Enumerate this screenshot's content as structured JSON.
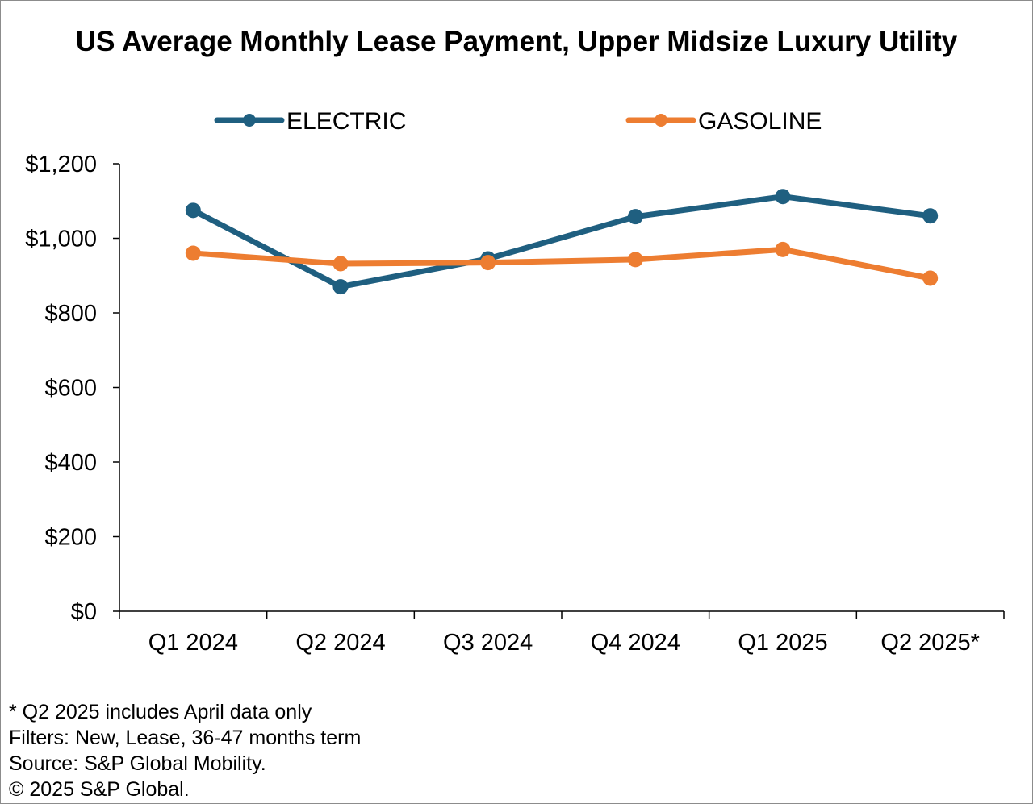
{
  "chart_data": {
    "type": "line",
    "title": "US Average Monthly Lease Payment, Upper Midsize Luxury Utility",
    "xlabel": "",
    "ylabel": "",
    "categories": [
      "Q1 2024",
      "Q2 2024",
      "Q3 2024",
      "Q4 2024",
      "Q1 2025",
      "Q2 2025*"
    ],
    "ylim": [
      0,
      1200
    ],
    "yticks": [
      0,
      200,
      400,
      600,
      800,
      1000,
      1200
    ],
    "ytick_labels": [
      "$0",
      "$200",
      "$400",
      "$600",
      "$800",
      "$1,000",
      "$1,200"
    ],
    "grid": false,
    "legend_position": "top",
    "series": [
      {
        "name": "ELECTRIC",
        "color": "#1f5f80",
        "values": [
          1075,
          870,
          945,
          1058,
          1112,
          1060
        ]
      },
      {
        "name": "GASOLINE",
        "color": "#ed7d31",
        "values": [
          960,
          932,
          935,
          943,
          970,
          893
        ]
      }
    ]
  },
  "footnotes": {
    "note": "* Q2 2025 includes April data only",
    "filters": "Filters: New, Lease, 36-47 months term",
    "source": "Source: S&P Global Mobility.",
    "copyright": "© 2025 S&P Global."
  }
}
